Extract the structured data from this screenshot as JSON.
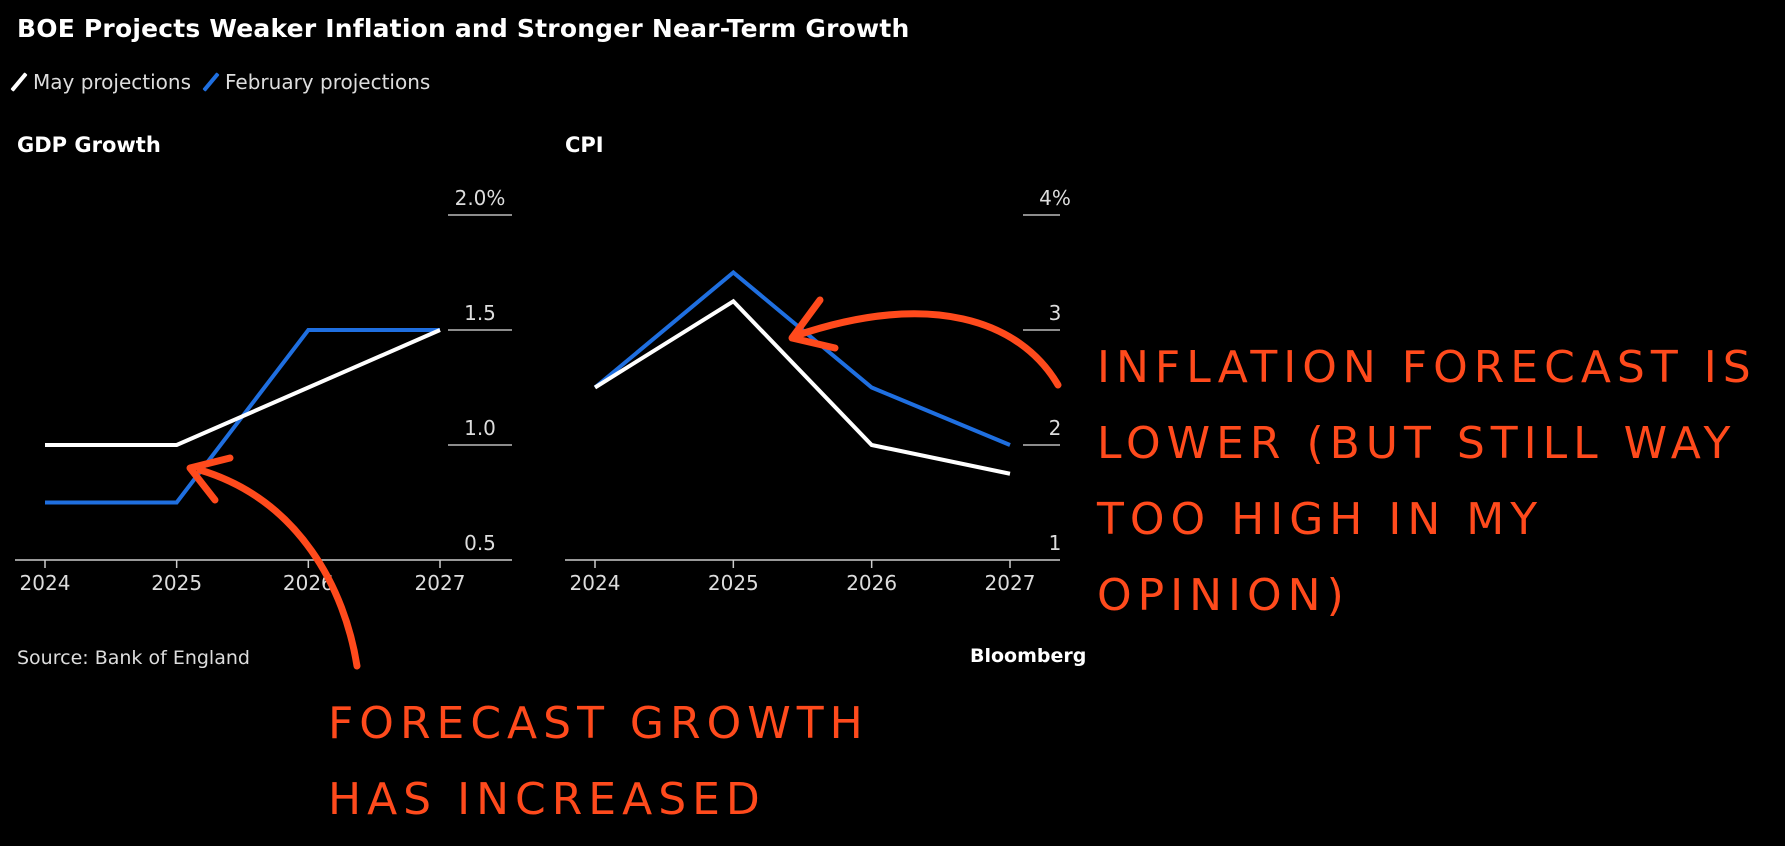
{
  "title": "BOE Projects Weaker Inflation and Stronger Near-Term Growth",
  "legend": [
    {
      "label": "May projections",
      "color": "#ffffff"
    },
    {
      "label": "February projections",
      "color": "#1f6fe0"
    }
  ],
  "source": "Source: Bank of England",
  "brand": "Bloomberg",
  "chart_data": [
    {
      "type": "line",
      "title": "GDP Growth",
      "x": [
        "2024",
        "2025",
        "2026",
        "2027"
      ],
      "ylim": [
        0.5,
        2.0
      ],
      "yticks": [
        "2.0%",
        "1.5",
        "1.0",
        "0.5"
      ],
      "series": [
        {
          "name": "May projections",
          "color": "#ffffff",
          "values": [
            1.0,
            1.0,
            1.25,
            1.5
          ]
        },
        {
          "name": "February projections",
          "color": "#1f6fe0",
          "values": [
            0.75,
            0.75,
            1.5,
            1.5
          ]
        }
      ]
    },
    {
      "type": "line",
      "title": "CPI",
      "x": [
        "2024",
        "2025",
        "2026",
        "2027"
      ],
      "ylim": [
        1,
        4
      ],
      "yticks": [
        "4%",
        "3",
        "2",
        "1"
      ],
      "series": [
        {
          "name": "May projections",
          "color": "#ffffff",
          "values": [
            2.5,
            3.25,
            2.0,
            1.75
          ]
        },
        {
          "name": "February projections",
          "color": "#1f6fe0",
          "values": [
            2.5,
            3.5,
            2.5,
            2.0
          ]
        }
      ]
    }
  ],
  "annotations": {
    "growth_lines": [
      "FORECAST GROWTH",
      "HAS INCREASED"
    ],
    "inflation_lines": [
      "INFLATION FORECAST IS",
      "LOWER (BUT STILL WAY",
      "TOO HIGH IN MY OPINION)"
    ],
    "color": "#ff4a1c"
  }
}
